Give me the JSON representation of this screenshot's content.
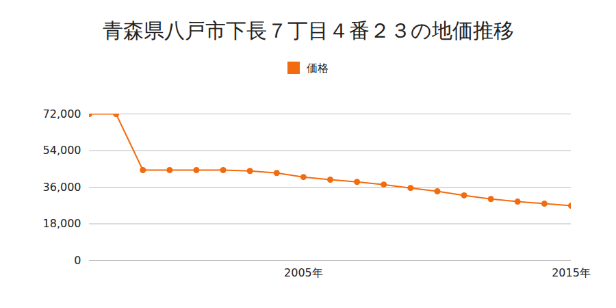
{
  "chart_data": {
    "type": "line",
    "title": "青森県八戸市下長７丁目４番２３の地価推移",
    "x": [
      1997,
      1998,
      1999,
      2000,
      2001,
      2002,
      2003,
      2004,
      2005,
      2006,
      2007,
      2008,
      2009,
      2010,
      2011,
      2012,
      2013,
      2014,
      2015
    ],
    "series": [
      {
        "name": "価格",
        "color": "#f26b0e",
        "marker": "circle",
        "values": [
          72000,
          72000,
          44400,
          44400,
          44400,
          44400,
          44000,
          43000,
          41000,
          39700,
          38600,
          37300,
          35600,
          34000,
          32000,
          30200,
          28900,
          27900,
          26900
        ]
      }
    ],
    "xlim": [
      1997,
      2015
    ],
    "xticks": [
      {
        "value": 2005,
        "label": "2005年"
      },
      {
        "value": 2015,
        "label": "2015年"
      }
    ],
    "ylim": [
      0,
      72000
    ],
    "yticks": [
      0,
      {
        "value": 18000,
        "label": "18,000"
      },
      {
        "value": 36000,
        "label": "36,000"
      },
      {
        "value": 54000,
        "label": "54,000"
      },
      {
        "value": 72000,
        "label": "72,000"
      }
    ],
    "grid": true,
    "legend": "top"
  }
}
